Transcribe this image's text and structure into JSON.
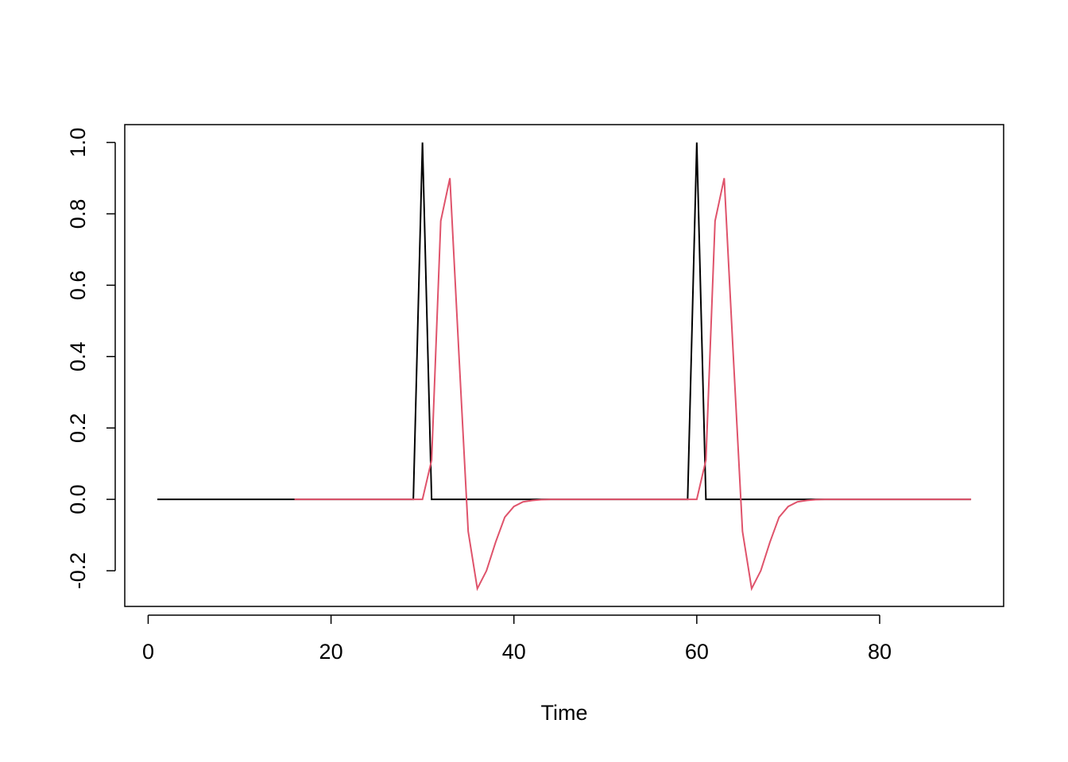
{
  "chart_data": {
    "type": "line",
    "xlabel": "Time",
    "x": [
      1,
      2,
      3,
      4,
      5,
      6,
      7,
      8,
      9,
      10,
      11,
      12,
      13,
      14,
      15,
      16,
      17,
      18,
      19,
      20,
      21,
      22,
      23,
      24,
      25,
      26,
      27,
      28,
      29,
      30,
      31,
      32,
      33,
      34,
      35,
      36,
      37,
      38,
      39,
      40,
      41,
      42,
      43,
      44,
      45,
      46,
      47,
      48,
      49,
      50,
      51,
      52,
      53,
      54,
      55,
      56,
      57,
      58,
      59,
      60,
      61,
      62,
      63,
      64,
      65,
      66,
      67,
      68,
      69,
      70,
      71,
      72,
      73,
      74,
      75,
      76,
      77,
      78,
      79,
      80,
      81,
      82,
      83,
      84,
      85,
      86,
      87,
      88,
      89,
      90
    ],
    "series": [
      {
        "color": "#000000",
        "values": [
          0,
          0,
          0,
          0,
          0,
          0,
          0,
          0,
          0,
          0,
          0,
          0,
          0,
          0,
          0,
          0,
          0,
          0,
          0,
          0,
          0,
          0,
          0,
          0,
          0,
          0,
          0,
          0,
          0,
          1,
          0,
          0,
          0,
          0,
          0,
          0,
          0,
          0,
          0,
          0,
          0,
          0,
          0,
          0,
          0,
          0,
          0,
          0,
          0,
          0,
          0,
          0,
          0,
          0,
          0,
          0,
          0,
          0,
          0,
          1,
          0,
          0,
          0,
          0,
          0,
          0,
          0,
          0,
          0,
          0,
          0,
          0,
          0,
          0,
          0,
          0,
          0,
          0,
          0,
          0,
          0,
          0,
          0,
          0,
          0,
          0,
          0,
          0,
          0,
          0
        ]
      },
      {
        "color": "#DF536B",
        "values": [
          null,
          null,
          null,
          null,
          null,
          null,
          null,
          null,
          null,
          null,
          null,
          null,
          null,
          null,
          null,
          0,
          0,
          0,
          0,
          0,
          0,
          0,
          0,
          0,
          0,
          0,
          0,
          0,
          0,
          0,
          0.11,
          0.78,
          0.9,
          0.4,
          -0.09,
          -0.25,
          -0.2,
          -0.12,
          -0.05,
          -0.02,
          -0.007,
          -0.003,
          -0.001,
          0,
          0,
          0,
          0,
          0,
          0,
          0,
          0,
          0,
          0,
          0,
          0,
          0,
          0,
          0,
          0,
          0,
          0.11,
          0.78,
          0.9,
          0.4,
          -0.09,
          -0.25,
          -0.2,
          -0.12,
          -0.05,
          -0.02,
          -0.007,
          -0.003,
          -0.001,
          0,
          0,
          0,
          0,
          0,
          0,
          0,
          0,
          0,
          0,
          0,
          0,
          0,
          0,
          0,
          0,
          0
        ]
      }
    ],
    "xlim": [
      -2.56,
      93.56
    ],
    "ylim": [
      -0.3,
      1.05
    ],
    "xticks": [
      0,
      20,
      40,
      60,
      80
    ],
    "yticks": [
      -0.2,
      {
        "value": 0,
        "label": "0.0"
      },
      0.2,
      0.4,
      0.6,
      0.8,
      {
        "value": 1,
        "label": "1.0"
      }
    ]
  }
}
